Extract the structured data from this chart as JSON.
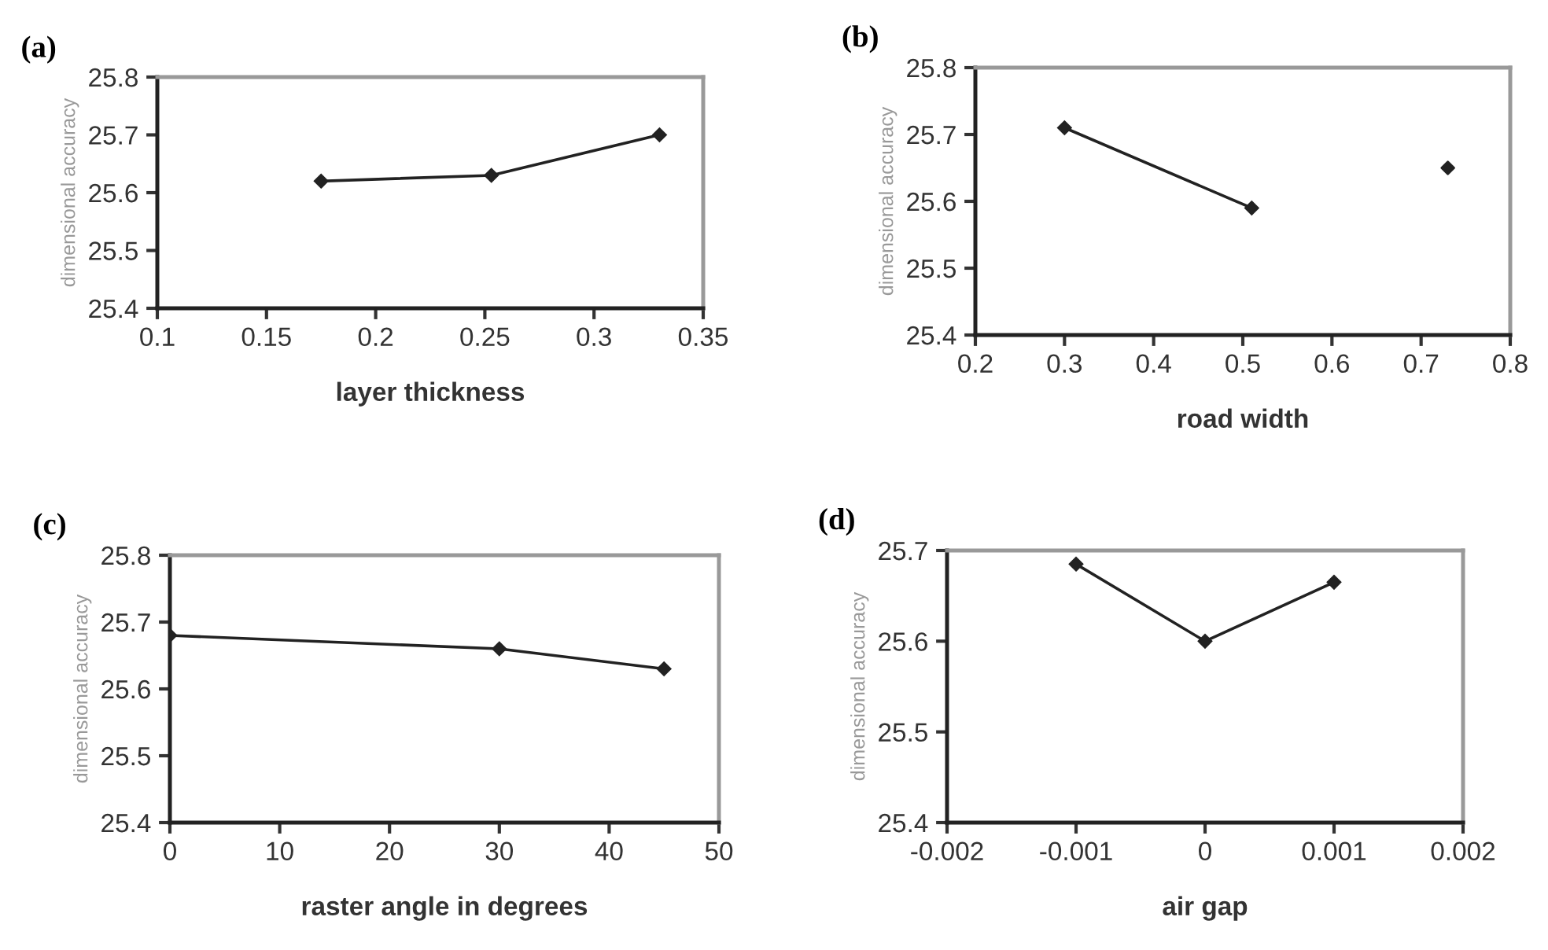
{
  "chart_data": [
    {
      "type": "line",
      "title": "(a)",
      "xlabel": "layer thickness",
      "ylabel": "dimensional accuracy",
      "x": [
        0.175,
        0.253,
        0.33
      ],
      "series": [
        {
          "color": "#222222",
          "values": [
            25.62,
            25.63,
            25.7
          ]
        }
      ],
      "xlim": [
        0.1,
        0.35
      ],
      "xticks": [
        0.1,
        0.15,
        0.2,
        0.25,
        0.3,
        0.35
      ],
      "ylim": [
        25.4,
        25.8
      ],
      "yticks": [
        25.4,
        25.5,
        25.6,
        25.7,
        25.8
      ],
      "marker": "diamond",
      "grid": false,
      "legend": false
    },
    {
      "type": "line",
      "title": "(b)",
      "xlabel": "road width",
      "ylabel": "dimensional accuracy",
      "series": [
        {
          "color": "#222222",
          "x": [
            0.3,
            0.51
          ],
          "values": [
            25.71,
            25.59
          ]
        },
        {
          "type": "scatter",
          "color": "#222222",
          "x": [
            0.73
          ],
          "values": [
            25.65
          ]
        }
      ],
      "xlim": [
        0.2,
        0.8
      ],
      "xticks": [
        0.2,
        0.3,
        0.4,
        0.5,
        0.6,
        0.7,
        0.8
      ],
      "ylim": [
        25.4,
        25.8
      ],
      "yticks": [
        25.4,
        25.5,
        25.6,
        25.7,
        25.8
      ],
      "marker": "diamond",
      "grid": false,
      "legend": false
    },
    {
      "type": "line",
      "title": "(c)",
      "xlabel": "raster angle in degrees",
      "ylabel": "dimensional accuracy",
      "x": [
        0,
        30,
        45
      ],
      "series": [
        {
          "color": "#222222",
          "values": [
            25.68,
            25.66,
            25.63
          ]
        }
      ],
      "xlim": [
        0,
        50
      ],
      "xticks": [
        0,
        10,
        20,
        30,
        40,
        50
      ],
      "ylim": [
        25.4,
        25.8
      ],
      "yticks": [
        25.4,
        25.5,
        25.6,
        25.7,
        25.8
      ],
      "marker": "diamond",
      "grid": false,
      "legend": false
    },
    {
      "type": "line",
      "title": "(d)",
      "xlabel": "air gap",
      "ylabel": "dimensional accuracy",
      "x": [
        -0.001,
        0,
        0.001
      ],
      "series": [
        {
          "color": "#222222",
          "values": [
            25.685,
            25.6,
            25.665
          ]
        }
      ],
      "xlim": [
        -0.002,
        0.002
      ],
      "xticks": [
        -0.002,
        -0.001,
        0,
        0.001,
        0.002
      ],
      "ylim": [
        25.4,
        25.7
      ],
      "yticks": [
        25.4,
        25.5,
        25.6,
        25.7
      ],
      "marker": "diamond",
      "grid": false,
      "legend": false
    }
  ]
}
